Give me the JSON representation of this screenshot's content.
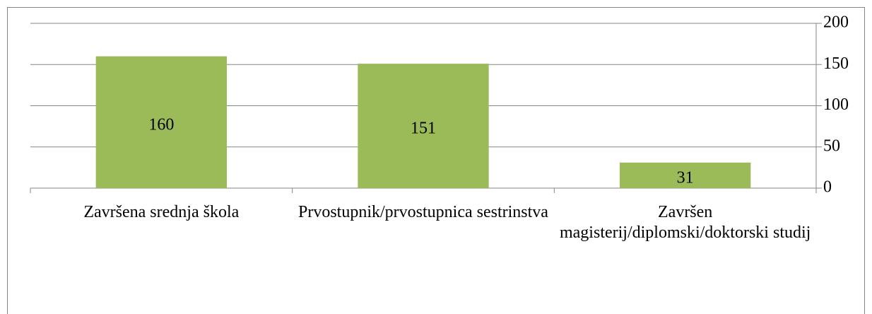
{
  "chart_data": {
    "type": "bar",
    "categories": [
      "Završena srednja škola",
      "Prvostupnik/prvostupnica sestrinstva",
      "Završen magisterij/diplomski/doktorski studij"
    ],
    "values": [
      160,
      151,
      31
    ],
    "color": "#9bbb59",
    "ylim": [
      0,
      200
    ],
    "yticks": [
      0,
      50,
      100,
      150,
      200
    ],
    "grid": true,
    "y_axis_side": "right"
  }
}
